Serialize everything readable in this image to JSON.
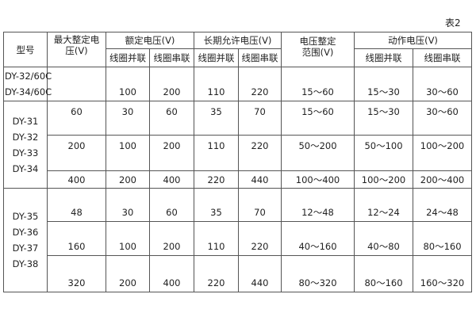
{
  "caption": "表2",
  "headers": {
    "model": "型号",
    "max_setting_voltage": "最大整定电压(V)",
    "rated_voltage": "额定电压(V)",
    "long_term_voltage": "长期允许电压(V)",
    "setting_range": "电压整定范围(V)",
    "action_voltage": "动作电压(V)",
    "parallel": "线圈并联",
    "series": "线圈串联"
  },
  "groups": [
    {
      "models": [
        "DY-32/60C",
        "DY-34/60C"
      ],
      "rows": [
        [
          "",
          "100",
          "200",
          "110",
          "220",
          "15～60",
          "15～30",
          "30～60"
        ]
      ]
    },
    {
      "models": [
        "DY-31",
        "DY-32",
        "DY-33",
        "DY-34"
      ],
      "rows": [
        [
          "60",
          "30",
          "60",
          "35",
          "70",
          "15～60",
          "15～30",
          "30～60"
        ],
        [
          "200",
          "100",
          "200",
          "110",
          "220",
          "50～200",
          "50～100",
          "100～200"
        ],
        [
          "400",
          "200",
          "400",
          "220",
          "440",
          "100～400",
          "100～200",
          "200～400"
        ]
      ]
    },
    {
      "models": [
        "DY-35",
        "DY-36",
        "DY-37",
        "DY-38"
      ],
      "rows": [
        [
          "48",
          "30",
          "60",
          "35",
          "70",
          "12～48",
          "12～24",
          "24～48"
        ],
        [
          "160",
          "100",
          "200",
          "110",
          "220",
          "40～160",
          "40～80",
          "80～160"
        ],
        [
          "320",
          "200",
          "400",
          "220",
          "440",
          "80～320",
          "80～160",
          "160～320"
        ]
      ]
    }
  ]
}
